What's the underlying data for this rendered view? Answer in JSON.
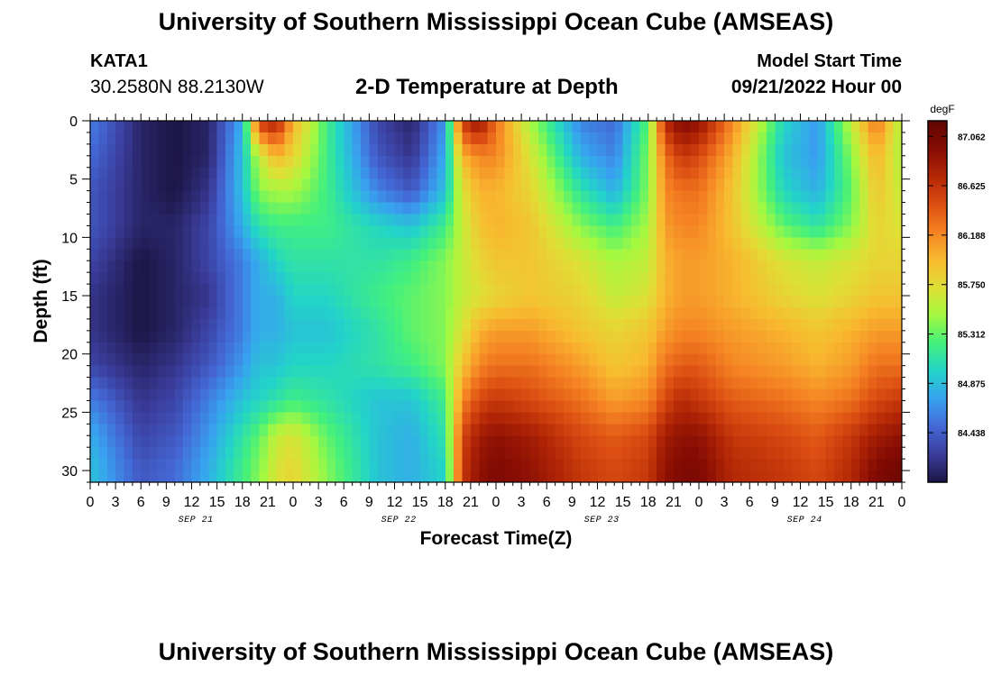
{
  "header": {
    "title": "University of Southern Mississippi Ocean Cube (AMSEAS)",
    "station_id": "KATA1",
    "coords": "30.2580N  88.2130W",
    "subtitle": "2-D Temperature at Depth",
    "model_label": "Model Start Time",
    "model_time": "09/21/2022 Hour 00"
  },
  "footer": {
    "title": "University of Southern Mississippi Ocean Cube (AMSEAS)"
  },
  "chart_data": {
    "type": "heatmap",
    "xlabel": "Forecast Time(Z)",
    "ylabel": "Depth (ft)",
    "x_ticks": [
      "0",
      "3",
      "6",
      "9",
      "12",
      "15",
      "18",
      "21",
      "0",
      "3",
      "6",
      "9",
      "12",
      "15",
      "18",
      "21",
      "0",
      "3",
      "6",
      "9",
      "12",
      "15",
      "18",
      "21",
      "0",
      "3",
      "6",
      "9",
      "12",
      "15",
      "18",
      "21",
      "0"
    ],
    "day_labels": [
      "SEP 21",
      "SEP 22",
      "SEP 23",
      "SEP 24"
    ],
    "y_ticks": [
      "0",
      "5",
      "10",
      "15",
      "20",
      "25",
      "30"
    ],
    "xlim": [
      0,
      96
    ],
    "ylim": [
      0,
      31
    ],
    "y_inverted": true,
    "colorbar": {
      "unit": "degF",
      "ticks": [
        "87.062",
        "86.625",
        "86.188",
        "85.750",
        "85.312",
        "84.875",
        "84.438"
      ],
      "range": [
        84.0,
        87.2
      ],
      "colors": [
        "#1d1545",
        "#3a3c9a",
        "#4468d6",
        "#38a2f0",
        "#22d4c8",
        "#44f07c",
        "#a4f840",
        "#dfe035",
        "#f8ba30",
        "#f58323",
        "#dc4e12",
        "#b42706",
        "#850c03",
        "#600502"
      ]
    },
    "depths_ft": [
      0,
      3,
      6,
      9,
      12,
      15,
      18,
      21,
      24,
      27,
      30,
      31
    ],
    "temps_hours": [
      0,
      6,
      10,
      14,
      18,
      20,
      22,
      24,
      28,
      34,
      38,
      42,
      44,
      46,
      48,
      52,
      58,
      62,
      66,
      68,
      70,
      72,
      76,
      82,
      86,
      90,
      93,
      96
    ],
    "temps_degF": [
      [
        84.6,
        84.1,
        84.0,
        84.1,
        84.8,
        86.6,
        86.8,
        86.0,
        85.2,
        84.3,
        84.1,
        84.7,
        86.6,
        86.9,
        86.3,
        85.5,
        84.6,
        84.5,
        85.3,
        86.7,
        87.0,
        86.9,
        86.2,
        85.0,
        84.7,
        85.6,
        86.3,
        85.5
      ],
      [
        84.5,
        84.1,
        84.0,
        84.1,
        84.9,
        85.6,
        86.0,
        85.8,
        85.2,
        84.4,
        84.2,
        84.8,
        86.0,
        86.2,
        86.2,
        85.7,
        84.8,
        84.6,
        85.4,
        86.3,
        86.6,
        86.5,
        86.0,
        84.9,
        84.7,
        85.4,
        86.0,
        85.5
      ],
      [
        84.4,
        84.1,
        84.0,
        84.2,
        84.9,
        85.4,
        85.5,
        85.5,
        85.2,
        84.6,
        84.4,
        84.9,
        85.7,
        86.0,
        86.0,
        85.8,
        85.1,
        84.8,
        85.4,
        86.2,
        86.3,
        86.3,
        85.9,
        85.0,
        84.8,
        85.3,
        85.9,
        85.6
      ],
      [
        84.4,
        84.1,
        84.1,
        84.3,
        84.8,
        85.1,
        85.2,
        85.2,
        85.2,
        85.0,
        84.9,
        85.2,
        85.6,
        85.9,
        86.0,
        85.9,
        85.4,
        85.2,
        85.5,
        86.1,
        86.2,
        86.2,
        85.9,
        85.3,
        85.1,
        85.4,
        85.8,
        85.7
      ],
      [
        84.3,
        84.0,
        84.1,
        84.3,
        84.6,
        84.8,
        85.0,
        85.1,
        85.1,
        85.1,
        85.2,
        85.4,
        85.6,
        85.8,
        85.9,
        85.9,
        85.7,
        85.5,
        85.6,
        86.0,
        86.1,
        86.1,
        86.0,
        85.7,
        85.6,
        85.7,
        85.8,
        85.8
      ],
      [
        84.2,
        84.0,
        84.1,
        84.2,
        84.6,
        84.8,
        84.8,
        85.0,
        85.0,
        85.2,
        85.3,
        85.4,
        85.6,
        85.7,
        85.8,
        85.9,
        85.8,
        85.6,
        85.7,
        86.0,
        86.1,
        86.1,
        86.0,
        85.8,
        85.7,
        85.8,
        85.9,
        85.9
      ],
      [
        84.2,
        84.0,
        84.1,
        84.3,
        84.6,
        84.8,
        84.8,
        84.9,
        84.9,
        85.1,
        85.3,
        85.4,
        85.7,
        86.0,
        86.1,
        86.1,
        85.9,
        85.8,
        85.9,
        86.1,
        86.2,
        86.2,
        86.1,
        86.0,
        85.9,
        86.0,
        86.1,
        86.1
      ],
      [
        84.3,
        84.1,
        84.2,
        84.4,
        84.7,
        84.9,
        84.9,
        85.0,
        85.0,
        85.1,
        85.2,
        85.4,
        85.9,
        86.2,
        86.3,
        86.3,
        86.1,
        85.9,
        86.0,
        86.3,
        86.4,
        86.4,
        86.2,
        86.1,
        86.0,
        86.1,
        86.3,
        86.3
      ],
      [
        84.6,
        84.2,
        84.3,
        84.6,
        84.9,
        85.0,
        85.1,
        85.2,
        85.1,
        84.9,
        84.9,
        85.2,
        86.2,
        86.5,
        86.6,
        86.5,
        86.3,
        86.1,
        86.2,
        86.5,
        86.7,
        86.6,
        86.4,
        86.3,
        86.2,
        86.3,
        86.5,
        86.6
      ],
      [
        84.8,
        84.3,
        84.4,
        84.7,
        85.1,
        85.3,
        85.6,
        85.7,
        85.3,
        84.9,
        84.8,
        85.1,
        86.5,
        86.8,
        86.9,
        86.8,
        86.5,
        86.4,
        86.5,
        86.8,
        86.9,
        86.9,
        86.6,
        86.5,
        86.4,
        86.6,
        86.8,
        86.9
      ],
      [
        84.9,
        84.4,
        84.5,
        84.8,
        85.2,
        85.4,
        85.7,
        85.8,
        85.4,
        84.9,
        84.8,
        85.0,
        86.6,
        86.9,
        87.0,
        86.9,
        86.6,
        86.5,
        86.6,
        86.9,
        87.0,
        87.0,
        86.7,
        86.6,
        86.5,
        86.7,
        87.0,
        87.1
      ],
      [
        84.9,
        84.4,
        84.5,
        84.8,
        85.2,
        85.4,
        85.7,
        85.8,
        85.4,
        84.9,
        84.8,
        85.0,
        86.6,
        86.9,
        87.0,
        86.9,
        86.6,
        86.5,
        86.6,
        86.9,
        87.0,
        87.0,
        86.7,
        86.6,
        86.5,
        86.7,
        87.0,
        87.1
      ]
    ]
  }
}
